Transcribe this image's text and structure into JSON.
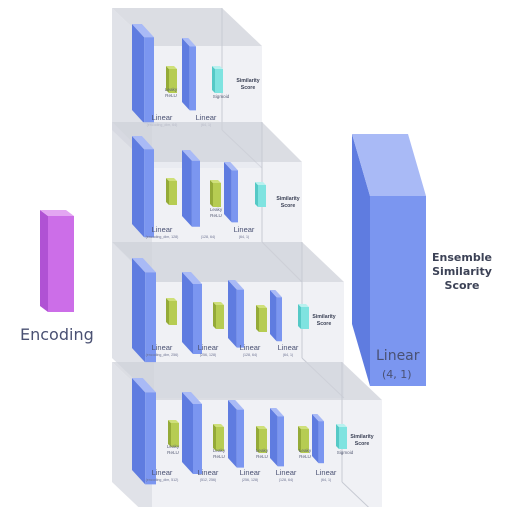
{
  "encoding": {
    "label": "Encoding"
  },
  "ensemble": {
    "title_lines": [
      "Ensemble",
      "Similarity",
      "Score"
    ],
    "linear_label": "Linear",
    "linear_dims": "(4, 1)"
  },
  "stacks": [
    {
      "layers": [
        {
          "label": "Linear",
          "dims": "(encoding_dim, 64)"
        },
        {
          "label": "Linear",
          "dims": "(64, 1)"
        }
      ],
      "activations": [
        "Leaky ReLU",
        "Sigmoid"
      ],
      "output": [
        "Similarity",
        "Score"
      ]
    },
    {
      "layers": [
        {
          "label": "Linear",
          "dims": "(encoding_dim, 128)"
        },
        {
          "label": "",
          "dims": "(128, 64)"
        },
        {
          "label": "Linear",
          "dims": "(64, 1)"
        }
      ],
      "activations": [
        "Leaky ReLU"
      ],
      "output": [
        "Similarity",
        "Score"
      ]
    },
    {
      "layers": [
        {
          "label": "Linear",
          "dims": "(encoding_dim, 256)"
        },
        {
          "label": "Linear",
          "dims": "(256, 128)"
        },
        {
          "label": "Linear",
          "dims": "(128, 64)"
        },
        {
          "label": "Linear",
          "dims": "(64, 1)"
        }
      ],
      "activations": [],
      "output": [
        "Similarity",
        "Score"
      ]
    },
    {
      "layers": [
        {
          "label": "Linear",
          "dims": "(encoding_dim, 512)"
        },
        {
          "label": "Linear",
          "dims": "(512, 256)"
        },
        {
          "label": "Linear",
          "dims": "(256, 128)"
        },
        {
          "label": "Linear",
          "dims": "(128, 64)"
        },
        {
          "label": "Linear",
          "dims": "(64, 1)"
        }
      ],
      "activations": [
        "Leaky ReLU",
        "Leaky ReLU",
        "Leaky ReLU",
        "Leaky ReLU",
        "Sigmoid"
      ],
      "output": [
        "Similarity",
        "Score"
      ]
    }
  ],
  "colors": {
    "linear_front": "#7b96f0",
    "linear_side": "#5f7ce0",
    "linear_top": "#a9baf6",
    "activation": "#b6cc52",
    "activation_side": "#94aa38",
    "sigmoid": "#7fe3e0",
    "sigmoid_side": "#55c9c6",
    "encoding_front": "#cc6ee8",
    "encoding_side": "#b052d4",
    "encoding_top": "#e3a6f2",
    "panel_face": "#e4e6ec",
    "panel_top": "#cfd2da",
    "text_dark": "#3c4256"
  }
}
